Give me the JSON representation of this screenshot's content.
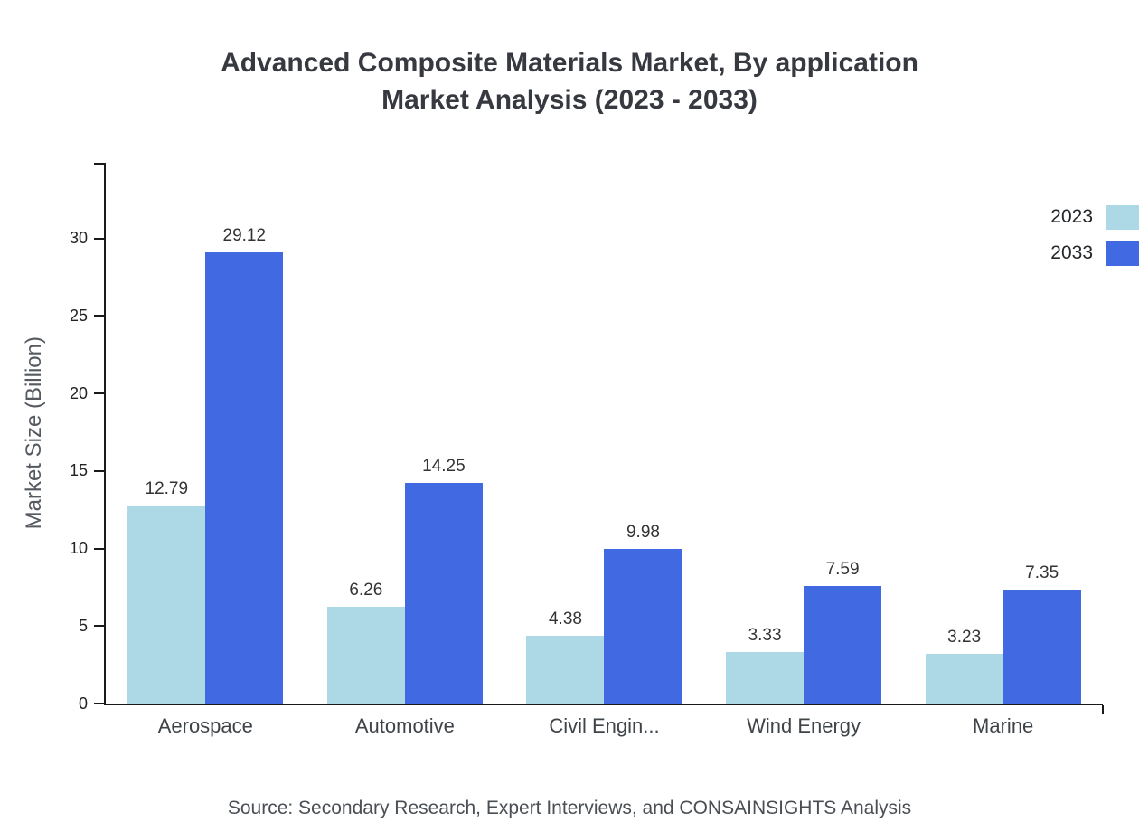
{
  "title": {
    "line1": "Advanced Composite Materials Market, By application",
    "line2": "Market Analysis (2023 - 2033)"
  },
  "source": "Source: Secondary Research, Expert Interviews, and CONSAINSIGHTS Analysis",
  "chart_data": {
    "type": "bar",
    "title": "Advanced Composite Materials Market, By application Market Analysis (2023 - 2033)",
    "categories": [
      "Aerospace",
      "Automotive",
      "Civil Engin...",
      "Wind Energy",
      "Marine"
    ],
    "series": [
      {
        "name": "2023",
        "color": "#add8e6",
        "values": [
          12.79,
          6.26,
          4.38,
          3.33,
          3.23
        ]
      },
      {
        "name": "2033",
        "color": "#4169e1",
        "values": [
          29.12,
          14.25,
          9.98,
          7.59,
          7.35
        ]
      }
    ],
    "xlabel": "",
    "ylabel": "Market Size (Billion)",
    "ylim": [
      0,
      35
    ],
    "yticks": [
      0,
      5,
      10,
      15,
      20,
      25,
      30
    ],
    "grid": false,
    "legend_position": "top-right"
  }
}
